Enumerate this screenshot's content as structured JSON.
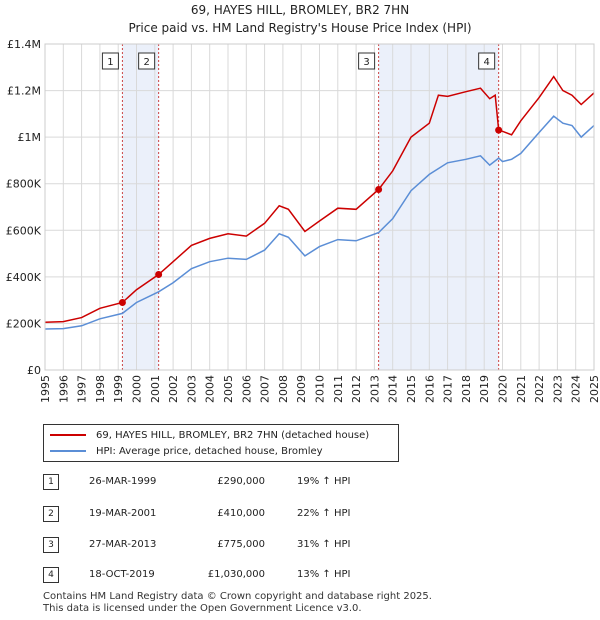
{
  "title_line1": "69, HAYES HILL, BROMLEY, BR2 7HN",
  "title_line2": "Price paid vs. HM Land Registry's House Price Index (HPI)",
  "chart_data": {
    "type": "line",
    "xlim": [
      1995,
      2025
    ],
    "ylim": [
      0,
      1400000
    ],
    "x_ticks": [
      1995,
      1996,
      1997,
      1998,
      1999,
      2000,
      2001,
      2002,
      2003,
      2004,
      2005,
      2006,
      2007,
      2008,
      2009,
      2010,
      2011,
      2012,
      2013,
      2014,
      2015,
      2016,
      2017,
      2018,
      2019,
      2020,
      2021,
      2022,
      2023,
      2024,
      2025
    ],
    "y_ticks": [
      {
        "value": 0,
        "label": "£0"
      },
      {
        "value": 200000,
        "label": "£200K"
      },
      {
        "value": 400000,
        "label": "£400K"
      },
      {
        "value": 600000,
        "label": "£600K"
      },
      {
        "value": 800000,
        "label": "£800K"
      },
      {
        "value": 1000000,
        "label": "£1M"
      },
      {
        "value": 1200000,
        "label": "£1.2M"
      },
      {
        "value": 1400000,
        "label": "£1.4M"
      }
    ],
    "grid": true,
    "series": [
      {
        "name": "69, HAYES HILL, BROMLEY, BR2 7HN (detached house)",
        "color": "#cc0000",
        "points": [
          [
            1995,
            205000
          ],
          [
            1996,
            208000
          ],
          [
            1997,
            225000
          ],
          [
            1998,
            265000
          ],
          [
            1999.23,
            290000
          ],
          [
            2000,
            345000
          ],
          [
            2001.21,
            410000
          ],
          [
            2002,
            465000
          ],
          [
            2003,
            535000
          ],
          [
            2004,
            565000
          ],
          [
            2005,
            585000
          ],
          [
            2006,
            575000
          ],
          [
            2007,
            630000
          ],
          [
            2007.8,
            705000
          ],
          [
            2008.3,
            690000
          ],
          [
            2009.2,
            595000
          ],
          [
            2010,
            640000
          ],
          [
            2011,
            695000
          ],
          [
            2012,
            690000
          ],
          [
            2013.23,
            775000
          ],
          [
            2014,
            855000
          ],
          [
            2015,
            1000000
          ],
          [
            2016,
            1060000
          ],
          [
            2016.5,
            1180000
          ],
          [
            2017,
            1175000
          ],
          [
            2018,
            1195000
          ],
          [
            2018.8,
            1210000
          ],
          [
            2019.3,
            1165000
          ],
          [
            2019.6,
            1180000
          ],
          [
            2019.79,
            1030000
          ],
          [
            2020,
            1025000
          ],
          [
            2020.5,
            1010000
          ],
          [
            2021,
            1070000
          ],
          [
            2022,
            1170000
          ],
          [
            2022.8,
            1260000
          ],
          [
            2023.3,
            1200000
          ],
          [
            2023.8,
            1180000
          ],
          [
            2024.3,
            1140000
          ],
          [
            2025,
            1190000
          ]
        ]
      },
      {
        "name": "HPI: Average price, detached house, Bromley",
        "color": "#5b8ed6",
        "points": [
          [
            1995,
            176000
          ],
          [
            1996,
            178000
          ],
          [
            1997,
            190000
          ],
          [
            1998,
            220000
          ],
          [
            1999.23,
            243000
          ],
          [
            2000,
            290000
          ],
          [
            2001.21,
            336000
          ],
          [
            2002,
            375000
          ],
          [
            2003,
            435000
          ],
          [
            2004,
            465000
          ],
          [
            2005,
            480000
          ],
          [
            2006,
            475000
          ],
          [
            2007,
            515000
          ],
          [
            2007.8,
            585000
          ],
          [
            2008.3,
            570000
          ],
          [
            2009.2,
            490000
          ],
          [
            2010,
            530000
          ],
          [
            2011,
            560000
          ],
          [
            2012,
            555000
          ],
          [
            2013.23,
            590000
          ],
          [
            2014,
            650000
          ],
          [
            2015,
            770000
          ],
          [
            2016,
            840000
          ],
          [
            2017,
            890000
          ],
          [
            2018,
            905000
          ],
          [
            2018.8,
            920000
          ],
          [
            2019.3,
            880000
          ],
          [
            2019.79,
            910000
          ],
          [
            2020,
            895000
          ],
          [
            2020.5,
            905000
          ],
          [
            2021,
            930000
          ],
          [
            2022,
            1020000
          ],
          [
            2022.8,
            1090000
          ],
          [
            2023.3,
            1060000
          ],
          [
            2023.8,
            1050000
          ],
          [
            2024.3,
            1000000
          ],
          [
            2025,
            1050000
          ]
        ]
      }
    ],
    "sales": [
      {
        "id": "1",
        "x": 1999.23,
        "y": 290000
      },
      {
        "id": "2",
        "x": 2001.21,
        "y": 410000
      },
      {
        "id": "3",
        "x": 2013.23,
        "y": 775000
      },
      {
        "id": "4",
        "x": 2019.79,
        "y": 1030000
      }
    ],
    "shaded_spans": [
      [
        1999.23,
        2001.21
      ],
      [
        2013.23,
        2019.79
      ]
    ]
  },
  "legend": {
    "property_label": "69, HAYES HILL, BROMLEY, BR2 7HN (detached house)",
    "hpi_label": "HPI: Average price, detached house, Bromley"
  },
  "transactions": [
    {
      "num": "1",
      "date": "26-MAR-1999",
      "price": "£290,000",
      "hpi": "19% ↑ HPI"
    },
    {
      "num": "2",
      "date": "19-MAR-2001",
      "price": "£410,000",
      "hpi": "22% ↑ HPI"
    },
    {
      "num": "3",
      "date": "27-MAR-2013",
      "price": "£775,000",
      "hpi": "31% ↑ HPI"
    },
    {
      "num": "4",
      "date": "18-OCT-2019",
      "price": "£1,030,000",
      "hpi": "13% ↑ HPI"
    }
  ],
  "footer": {
    "line1": "Contains HM Land Registry data © Crown copyright and database right 2025.",
    "line2": "This data is licensed under the Open Government Licence v3.0."
  }
}
